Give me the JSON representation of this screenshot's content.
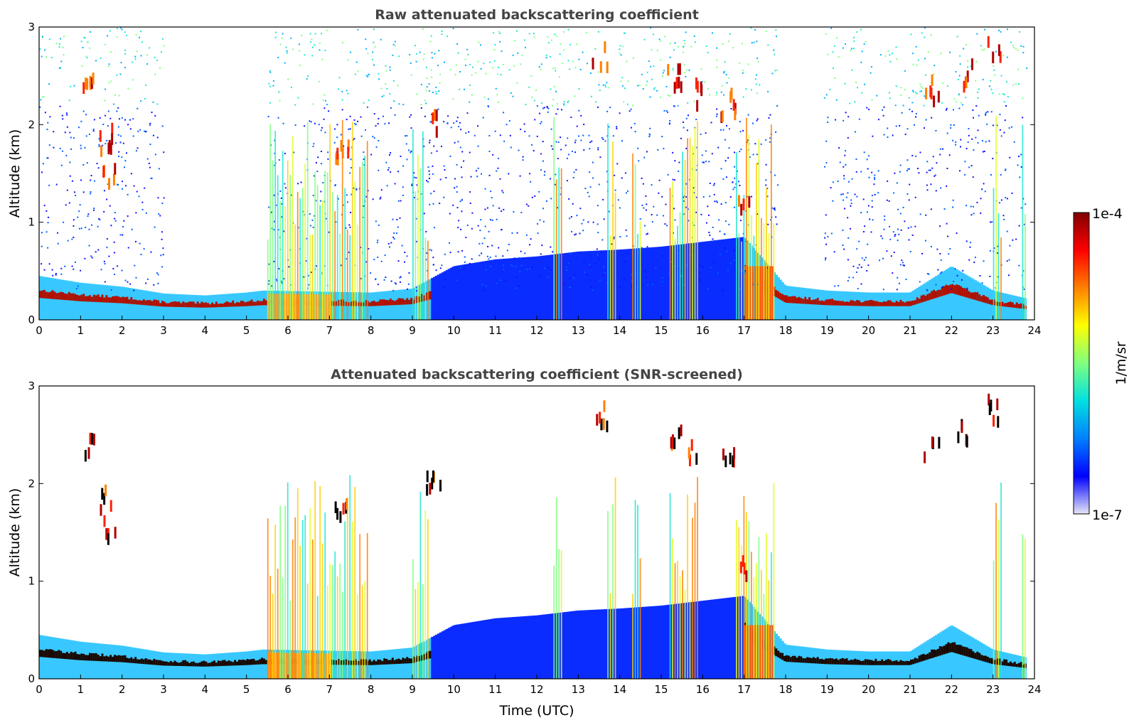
{
  "chart_data": [
    {
      "type": "heatmap",
      "title": "Raw attenuated backscattering coefficient",
      "xlabel": "",
      "ylabel": "Altitude (km)",
      "xlim": [
        0,
        24
      ],
      "ylim": [
        0,
        3
      ],
      "x_ticks": [
        "0",
        "1",
        "2",
        "3",
        "4",
        "5",
        "6",
        "7",
        "8",
        "9",
        "10",
        "11",
        "12",
        "13",
        "14",
        "15",
        "16",
        "17",
        "18",
        "19",
        "20",
        "21",
        "22",
        "23",
        "24"
      ],
      "y_ticks": [
        "0",
        "1",
        "2",
        "3"
      ],
      "boundary_layer": [
        {
          "x": 0,
          "y": 0.45
        },
        {
          "x": 1,
          "y": 0.38
        },
        {
          "x": 2,
          "y": 0.34
        },
        {
          "x": 3,
          "y": 0.27
        },
        {
          "x": 4,
          "y": 0.25
        },
        {
          "x": 5,
          "y": 0.28
        },
        {
          "x": 5.4,
          "y": 0.3
        },
        {
          "x": 8,
          "y": 0.28
        },
        {
          "x": 9,
          "y": 0.32
        },
        {
          "x": 10,
          "y": 0.55
        },
        {
          "x": 11,
          "y": 0.62
        },
        {
          "x": 12,
          "y": 0.65
        },
        {
          "x": 13,
          "y": 0.7
        },
        {
          "x": 14,
          "y": 0.72
        },
        {
          "x": 15,
          "y": 0.75
        },
        {
          "x": 16,
          "y": 0.8
        },
        {
          "x": 17,
          "y": 0.85
        },
        {
          "x": 18,
          "y": 0.35
        },
        {
          "x": 19,
          "y": 0.3
        },
        {
          "x": 20,
          "y": 0.28
        },
        {
          "x": 21,
          "y": 0.28
        },
        {
          "x": 22,
          "y": 0.55
        },
        {
          "x": 23,
          "y": 0.3
        },
        {
          "x": 23.8,
          "y": 0.22
        }
      ],
      "cloud_features": [
        {
          "x": 1.2,
          "y": 2.4
        },
        {
          "x": 1.6,
          "y": 1.85
        },
        {
          "x": 1.7,
          "y": 1.5
        },
        {
          "x": 7.3,
          "y": 1.7
        },
        {
          "x": 9.5,
          "y": 2.0
        },
        {
          "x": 13.5,
          "y": 2.7
        },
        {
          "x": 15.3,
          "y": 2.5
        },
        {
          "x": 15.8,
          "y": 2.3
        },
        {
          "x": 16.6,
          "y": 2.2
        },
        {
          "x": 17.0,
          "y": 1.1
        },
        {
          "x": 21.5,
          "y": 2.35
        },
        {
          "x": 22.3,
          "y": 2.5
        },
        {
          "x": 23.0,
          "y": 2.75
        }
      ]
    },
    {
      "type": "heatmap",
      "title": "Attenuated backscattering coefficient (SNR-screened)",
      "xlabel": "Time (UTC)",
      "ylabel": "Altitude (km)",
      "xlim": [
        0,
        24
      ],
      "ylim": [
        0,
        3
      ],
      "x_ticks": [
        "0",
        "1",
        "2",
        "3",
        "4",
        "5",
        "6",
        "7",
        "8",
        "9",
        "10",
        "11",
        "12",
        "13",
        "14",
        "15",
        "16",
        "17",
        "18",
        "19",
        "20",
        "21",
        "22",
        "23",
        "24"
      ],
      "y_ticks": [
        "0",
        "1",
        "2",
        "3"
      ],
      "boundary_layer": [
        {
          "x": 0,
          "y": 0.45
        },
        {
          "x": 1,
          "y": 0.38
        },
        {
          "x": 2,
          "y": 0.34
        },
        {
          "x": 3,
          "y": 0.27
        },
        {
          "x": 4,
          "y": 0.25
        },
        {
          "x": 5,
          "y": 0.28
        },
        {
          "x": 5.4,
          "y": 0.3
        },
        {
          "x": 8,
          "y": 0.28
        },
        {
          "x": 9,
          "y": 0.32
        },
        {
          "x": 10,
          "y": 0.55
        },
        {
          "x": 11,
          "y": 0.62
        },
        {
          "x": 12,
          "y": 0.65
        },
        {
          "x": 13,
          "y": 0.7
        },
        {
          "x": 14,
          "y": 0.72
        },
        {
          "x": 15,
          "y": 0.75
        },
        {
          "x": 16,
          "y": 0.8
        },
        {
          "x": 17,
          "y": 0.85
        },
        {
          "x": 18,
          "y": 0.35
        },
        {
          "x": 19,
          "y": 0.3
        },
        {
          "x": 20,
          "y": 0.28
        },
        {
          "x": 21,
          "y": 0.28
        },
        {
          "x": 22,
          "y": 0.55
        },
        {
          "x": 23,
          "y": 0.3
        },
        {
          "x": 23.8,
          "y": 0.22
        }
      ],
      "cloud_features": [
        {
          "x": 1.2,
          "y": 2.4
        },
        {
          "x": 1.6,
          "y": 1.85
        },
        {
          "x": 1.7,
          "y": 1.5
        },
        {
          "x": 7.3,
          "y": 1.7
        },
        {
          "x": 9.5,
          "y": 2.0
        },
        {
          "x": 13.5,
          "y": 2.7
        },
        {
          "x": 15.3,
          "y": 2.5
        },
        {
          "x": 15.8,
          "y": 2.3
        },
        {
          "x": 16.6,
          "y": 2.2
        },
        {
          "x": 17.0,
          "y": 1.1
        },
        {
          "x": 21.5,
          "y": 2.35
        },
        {
          "x": 22.3,
          "y": 2.5
        },
        {
          "x": 23.0,
          "y": 2.75
        }
      ]
    }
  ],
  "colorbar": {
    "label": "1/m/sr",
    "max_label": "1e-4",
    "min_label": "1e-7",
    "colors": [
      "#e6e6f7",
      "#0000ff",
      "#0080ff",
      "#00e0e0",
      "#80ff80",
      "#ffff00",
      "#ff8000",
      "#ff0000",
      "#800000"
    ]
  },
  "colors": {
    "background_layer": "#0a1aff",
    "aerosol_mid": "#40d8ff",
    "strong_return": "#b01000"
  }
}
